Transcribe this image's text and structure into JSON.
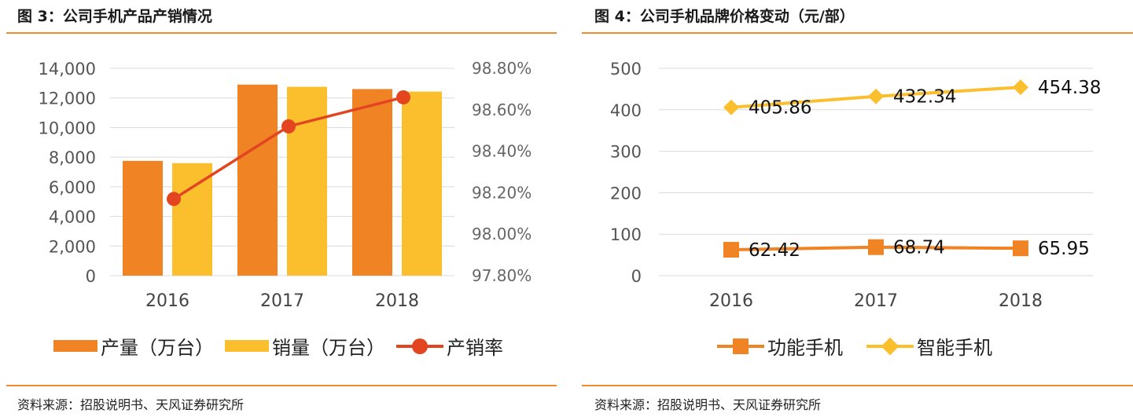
{
  "left": {
    "title": "图 3：公司手机产品产销情况",
    "source": "资料来源：招股说明书、天风证券研究所",
    "legend": {
      "production": "产量（万台）",
      "sales": "销量（万台）",
      "rate": "产销率"
    }
  },
  "right": {
    "title": "图 4：公司手机品牌价格变动（元/部）",
    "source": "资料来源：招股说明书、天风证券研究所",
    "legend": {
      "feature": "功能手机",
      "smart": "智能手机"
    }
  },
  "colors": {
    "production": "#f08323",
    "sales": "#fbbf2d",
    "rate": "#e2451f",
    "feature": "#f08323",
    "smart": "#fbbf2d",
    "rule": "#f08c2e"
  },
  "chart_data": [
    {
      "type": "bar",
      "title": "图 3：公司手机产品产销情况",
      "categories": [
        "2016",
        "2017",
        "2018"
      ],
      "series": [
        {
          "name": "产量（万台）",
          "type": "bar",
          "axis": "left",
          "values": [
            7750,
            12900,
            12600
          ]
        },
        {
          "name": "销量（万台）",
          "type": "bar",
          "axis": "left",
          "values": [
            7600,
            12750,
            12430
          ]
        },
        {
          "name": "产销率",
          "type": "line",
          "axis": "right",
          "values": [
            98.17,
            98.52,
            98.66
          ]
        }
      ],
      "ylim": [
        0,
        14000
      ],
      "yticks": [
        "0",
        "2,000",
        "4,000",
        "6,000",
        "8,000",
        "10,000",
        "12,000",
        "14,000"
      ],
      "y2lim": [
        97.8,
        98.8
      ],
      "y2ticks": [
        "97.80%",
        "98.00%",
        "98.20%",
        "98.40%",
        "98.60%",
        "98.80%"
      ],
      "grid": true,
      "legend": "bottom"
    },
    {
      "type": "line",
      "title": "图 4：公司手机品牌价格变动（元/部）",
      "categories": [
        "2016",
        "2017",
        "2018"
      ],
      "series": [
        {
          "name": "功能手机",
          "values": [
            62.42,
            68.74,
            65.95
          ],
          "labels": [
            "62.42",
            "68.74",
            "65.95"
          ],
          "marker": "square"
        },
        {
          "name": "智能手机",
          "values": [
            405.86,
            432.34,
            454.38
          ],
          "labels": [
            "405.86",
            "432.34",
            "454.38"
          ],
          "marker": "diamond"
        }
      ],
      "ylim": [
        0,
        500
      ],
      "yticks": [
        "0",
        "100",
        "200",
        "300",
        "400",
        "500"
      ],
      "grid": true,
      "legend": "bottom"
    }
  ]
}
